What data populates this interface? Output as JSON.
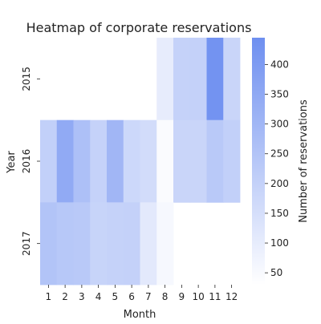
{
  "chart_data": {
    "type": "heatmap",
    "title": "Heatmap of corporate reservations",
    "xlabel": "Month",
    "ylabel": "Year",
    "colorbar_label": "Number of reservations",
    "x_categories": [
      "1",
      "2",
      "3",
      "4",
      "5",
      "6",
      "7",
      "8",
      "9",
      "10",
      "11",
      "12"
    ],
    "y_categories": [
      "2015",
      "2016",
      "2017"
    ],
    "values": [
      [
        null,
        null,
        null,
        null,
        null,
        null,
        null,
        100,
        195,
        200,
        430,
        185
      ],
      [
        205,
        345,
        265,
        195,
        300,
        175,
        160,
        45,
        185,
        185,
        230,
        205
      ],
      [
        250,
        235,
        230,
        190,
        195,
        200,
        110,
        55,
        null,
        null,
        null,
        null
      ]
    ],
    "color_range": [
      30,
      445
    ],
    "colorbar_ticks": [
      50,
      100,
      150,
      200,
      250,
      300,
      350,
      400
    ],
    "colors": {
      "low": "#ffffff",
      "high": "#6e8ff0"
    },
    "grid": false
  }
}
